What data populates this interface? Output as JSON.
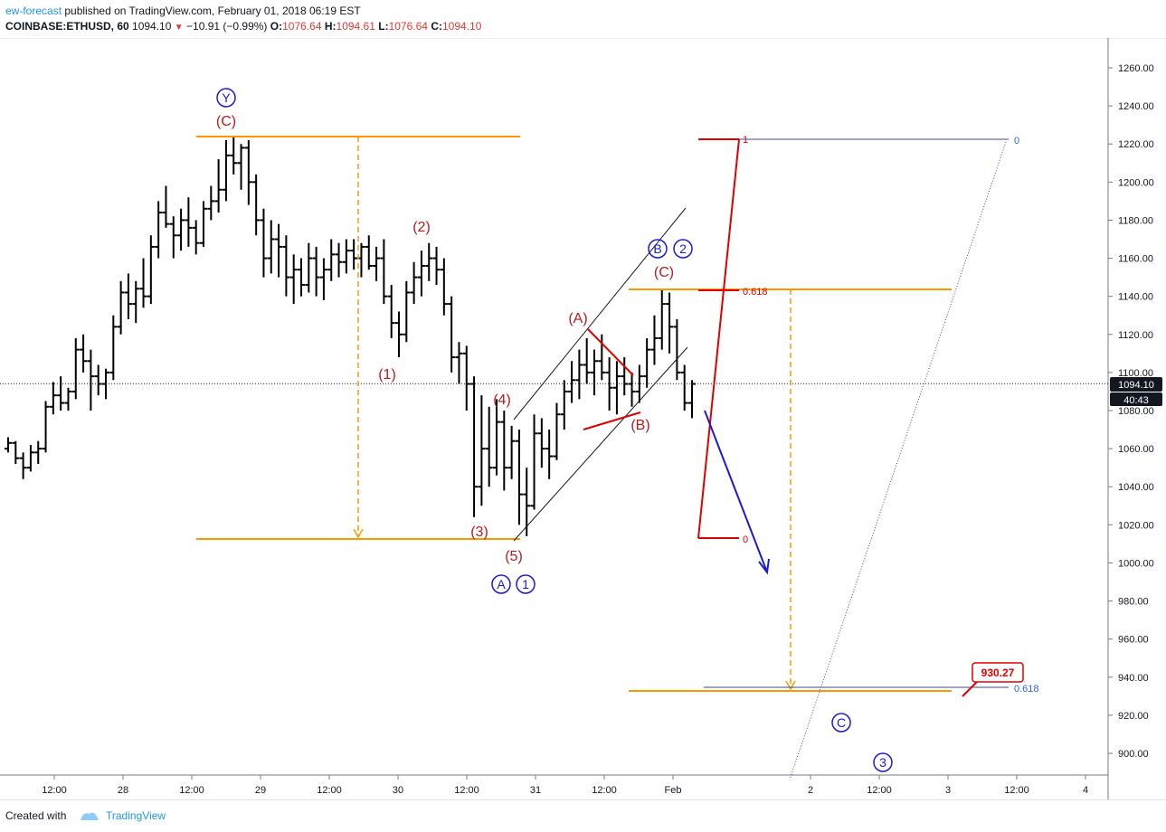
{
  "header": {
    "author": "ew-forecast",
    "published_text": " published on TradingView.com, February 01, 2018 06:19 EST",
    "symbol": "COINBASE:ETHUSD, 60",
    "last": "1094.10",
    "change": "−10.91 (−0.99%)",
    "o_label": "O:",
    "o_value": "1076.64",
    "h_label": "H:",
    "h_value": "1094.61",
    "l_label": "L:",
    "l_value": "1076.64",
    "c_label": "C:",
    "c_value": "1094.10"
  },
  "price_badge": "1094.10",
  "countdown_badge": "40:43",
  "footer": {
    "created_with": "Created with",
    "brand": "TradingView"
  },
  "colors": {
    "bull": "#000000",
    "orange": "#ff9800",
    "red": "#e00000",
    "dark_red": "#b71c1c",
    "blue": "#1a1ad6",
    "fib_blue": "#2962ff"
  },
  "chart_data": {
    "type": "ohlc",
    "y_ticks": [
      900,
      920,
      940,
      960,
      980,
      1000,
      1020,
      1040,
      1060,
      1080,
      1100,
      1120,
      1140,
      1160,
      1180,
      1200,
      1220,
      1240,
      1260
    ],
    "y_tick_labels": [
      "900.00",
      "920.00",
      "940.00",
      "960.00",
      "980.00",
      "1000.00",
      "1020.00",
      "1040.00",
      "1060.00",
      "1080.00",
      "1100.00",
      "1120.00",
      "1140.00",
      "1160.00",
      "1180.00",
      "1200.00",
      "1220.00",
      "1240.00",
      "1260.00"
    ],
    "ylim": [
      884,
      1275
    ],
    "x_range_hours": [
      0,
      156
    ],
    "x_ticks": [
      {
        "label": "12:00",
        "h": 12
      },
      {
        "label": "28",
        "h": 24
      },
      {
        "label": "12:00",
        "h": 36
      },
      {
        "label": "29",
        "h": 48
      },
      {
        "label": "12:00",
        "h": 60
      },
      {
        "label": "30",
        "h": 72
      },
      {
        "label": "12:00",
        "h": 84
      },
      {
        "label": "31",
        "h": 96
      },
      {
        "label": "12:00",
        "h": 108
      },
      {
        "label": "Feb",
        "h": 120
      },
      {
        "label": "2",
        "h": 144
      },
      {
        "label": "12:00",
        "h": 156
      },
      {
        "label": "3",
        "h": 168
      },
      {
        "label": "12:00",
        "h": 180
      },
      {
        "label": "4",
        "h": 192
      }
    ],
    "last_price": 1094.1,
    "bars": [
      [
        1060,
        1066,
        1058,
        1063
      ],
      [
        1063,
        1064,
        1052,
        1055
      ],
      [
        1055,
        1058,
        1044,
        1050
      ],
      [
        1050,
        1062,
        1048,
        1058
      ],
      [
        1058,
        1064,
        1052,
        1060
      ],
      [
        1060,
        1085,
        1058,
        1082
      ],
      [
        1082,
        1095,
        1078,
        1088
      ],
      [
        1088,
        1098,
        1080,
        1084
      ],
      [
        1084,
        1092,
        1080,
        1090
      ],
      [
        1090,
        1118,
        1086,
        1112
      ],
      [
        1112,
        1120,
        1100,
        1106
      ],
      [
        1106,
        1112,
        1080,
        1098
      ],
      [
        1098,
        1104,
        1088,
        1094
      ],
      [
        1094,
        1102,
        1086,
        1100
      ],
      [
        1100,
        1130,
        1096,
        1124
      ],
      [
        1124,
        1148,
        1120,
        1142
      ],
      [
        1142,
        1152,
        1128,
        1136
      ],
      [
        1136,
        1148,
        1126,
        1144
      ],
      [
        1144,
        1160,
        1134,
        1140
      ],
      [
        1140,
        1172,
        1136,
        1166
      ],
      [
        1166,
        1190,
        1160,
        1184
      ],
      [
        1184,
        1198,
        1176,
        1178
      ],
      [
        1178,
        1182,
        1160,
        1172
      ],
      [
        1172,
        1186,
        1164,
        1180
      ],
      [
        1180,
        1192,
        1166,
        1176
      ],
      [
        1176,
        1180,
        1162,
        1168
      ],
      [
        1168,
        1190,
        1166,
        1186
      ],
      [
        1186,
        1198,
        1180,
        1190
      ],
      [
        1190,
        1212,
        1184,
        1196
      ],
      [
        1196,
        1222,
        1190,
        1214
      ],
      [
        1214,
        1224,
        1204,
        1210
      ],
      [
        1210,
        1220,
        1196,
        1218
      ],
      [
        1218,
        1222,
        1188,
        1200
      ],
      [
        1200,
        1204,
        1172,
        1180
      ],
      [
        1180,
        1186,
        1150,
        1160
      ],
      [
        1160,
        1180,
        1152,
        1170
      ],
      [
        1170,
        1178,
        1150,
        1166
      ],
      [
        1166,
        1172,
        1140,
        1150
      ],
      [
        1150,
        1162,
        1136,
        1154
      ],
      [
        1154,
        1160,
        1140,
        1146
      ],
      [
        1146,
        1168,
        1142,
        1160
      ],
      [
        1160,
        1166,
        1140,
        1150
      ],
      [
        1150,
        1160,
        1138,
        1154
      ],
      [
        1154,
        1170,
        1148,
        1162
      ],
      [
        1162,
        1168,
        1150,
        1158
      ],
      [
        1158,
        1170,
        1152,
        1164
      ],
      [
        1164,
        1170,
        1154,
        1160
      ],
      [
        1160,
        1168,
        1150,
        1166
      ],
      [
        1166,
        1172,
        1154,
        1156
      ],
      [
        1156,
        1166,
        1148,
        1160
      ],
      [
        1160,
        1170,
        1136,
        1140
      ],
      [
        1140,
        1146,
        1118,
        1126
      ],
      [
        1126,
        1132,
        1108,
        1120
      ],
      [
        1120,
        1148,
        1116,
        1142
      ],
      [
        1142,
        1158,
        1136,
        1150
      ],
      [
        1150,
        1164,
        1140,
        1156
      ],
      [
        1156,
        1168,
        1148,
        1160
      ],
      [
        1160,
        1166,
        1146,
        1154
      ],
      [
        1154,
        1160,
        1130,
        1136
      ],
      [
        1136,
        1140,
        1100,
        1108
      ],
      [
        1108,
        1116,
        1094,
        1110
      ],
      [
        1110,
        1114,
        1080,
        1094
      ],
      [
        1094,
        1098,
        1024,
        1040
      ],
      [
        1040,
        1088,
        1030,
        1060
      ],
      [
        1060,
        1082,
        1040,
        1050
      ],
      [
        1050,
        1086,
        1046,
        1074
      ],
      [
        1074,
        1080,
        1038,
        1050
      ],
      [
        1050,
        1072,
        1044,
        1064
      ],
      [
        1064,
        1070,
        1020,
        1036
      ],
      [
        1036,
        1050,
        1014,
        1030
      ],
      [
        1030,
        1078,
        1028,
        1068
      ],
      [
        1068,
        1076,
        1050,
        1060
      ],
      [
        1060,
        1070,
        1044,
        1056
      ],
      [
        1056,
        1084,
        1054,
        1078
      ],
      [
        1078,
        1096,
        1070,
        1090
      ],
      [
        1090,
        1106,
        1084,
        1096
      ],
      [
        1096,
        1112,
        1086,
        1104
      ],
      [
        1104,
        1118,
        1094,
        1100
      ],
      [
        1100,
        1112,
        1088,
        1106
      ],
      [
        1106,
        1120,
        1096,
        1100
      ],
      [
        1100,
        1108,
        1080,
        1092
      ],
      [
        1092,
        1106,
        1078,
        1098
      ],
      [
        1098,
        1108,
        1088,
        1094
      ],
      [
        1094,
        1100,
        1082,
        1090
      ],
      [
        1090,
        1104,
        1084,
        1098
      ],
      [
        1098,
        1118,
        1092,
        1112
      ],
      [
        1112,
        1130,
        1104,
        1118
      ],
      [
        1118,
        1144,
        1112,
        1136
      ],
      [
        1136,
        1142,
        1110,
        1124
      ],
      [
        1124,
        1128,
        1096,
        1100
      ],
      [
        1100,
        1104,
        1080,
        1084
      ],
      [
        1084,
        1096,
        1076,
        1094
      ]
    ]
  }
}
